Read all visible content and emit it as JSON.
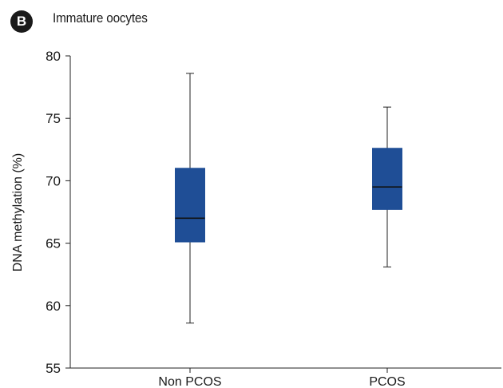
{
  "panel": {
    "label": "B",
    "title": "Immature oocytes"
  },
  "chart_data": {
    "type": "box",
    "title": "Immature oocytes",
    "xlabel": "",
    "ylabel": "DNA methylation (%)",
    "ylim": [
      55,
      80
    ],
    "yticks": [
      55,
      60,
      65,
      70,
      75,
      80
    ],
    "categories": [
      "Non PCOS",
      "PCOS"
    ],
    "boxes": [
      {
        "category": "Non PCOS",
        "min": 58.6,
        "q1": 65.1,
        "median": 67.0,
        "q3": 71.0,
        "max": 78.6
      },
      {
        "category": "PCOS",
        "min": 63.1,
        "q1": 67.7,
        "median": 69.5,
        "q3": 72.6,
        "max": 75.9
      }
    ],
    "box_color": "#1f4e96",
    "median_color": "#111111",
    "grid": false,
    "legend": "none"
  }
}
